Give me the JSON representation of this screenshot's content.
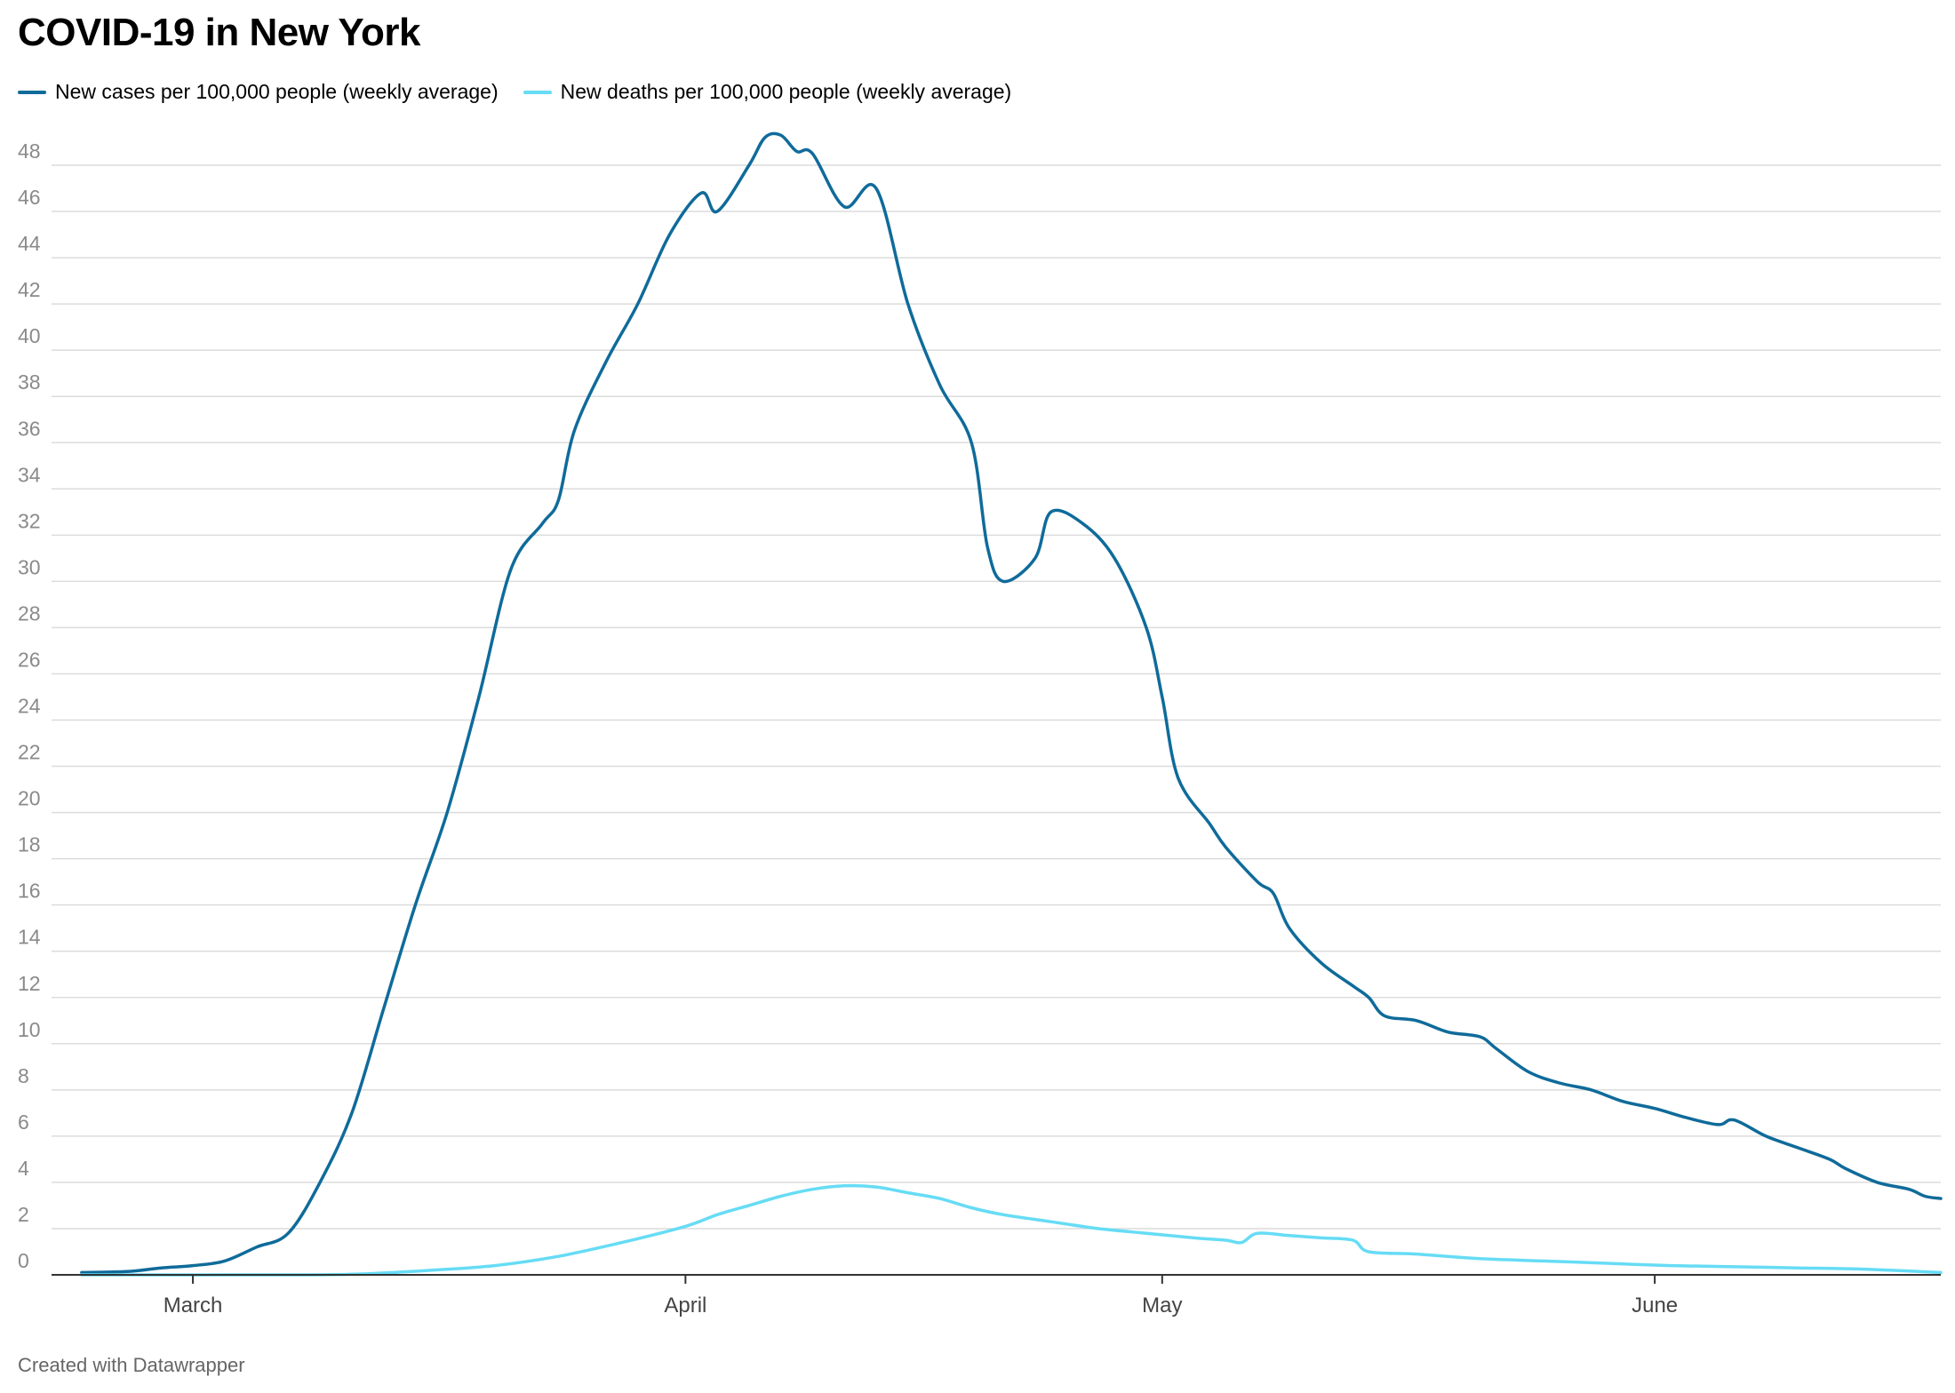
{
  "chart_data": {
    "type": "line",
    "title": "COVID-19 in New York",
    "xlabel": "",
    "ylabel": "",
    "ylim": [
      0,
      48
    ],
    "yticks": [
      0,
      2,
      4,
      6,
      8,
      10,
      12,
      14,
      16,
      18,
      20,
      22,
      24,
      26,
      28,
      30,
      32,
      34,
      36,
      38,
      40,
      42,
      44,
      46,
      48
    ],
    "xlim": [
      "2020-02-22",
      "2020-06-19"
    ],
    "xticks": [
      {
        "date": "2020-03-01",
        "label": "March"
      },
      {
        "date": "2020-04-01",
        "label": "April"
      },
      {
        "date": "2020-05-01",
        "label": "May"
      },
      {
        "date": "2020-06-01",
        "label": "June"
      }
    ],
    "grid": "horizontal",
    "legend": "top-left",
    "series": [
      {
        "name": "New cases per 100,000 people (weekly average)",
        "color": "#0f6b9a",
        "points": [
          [
            "2020-02-23",
            0.1
          ],
          [
            "2020-02-26",
            0.15
          ],
          [
            "2020-02-28",
            0.3
          ],
          [
            "2020-03-01",
            0.4
          ],
          [
            "2020-03-03",
            0.6
          ],
          [
            "2020-03-05",
            1.2
          ],
          [
            "2020-03-07",
            1.8
          ],
          [
            "2020-03-09",
            4.0
          ],
          [
            "2020-03-11",
            7.0
          ],
          [
            "2020-03-13",
            11.5
          ],
          [
            "2020-03-15",
            16.0
          ],
          [
            "2020-03-17",
            20.0
          ],
          [
            "2020-03-19",
            25.0
          ],
          [
            "2020-03-21",
            30.5
          ],
          [
            "2020-03-23",
            32.5
          ],
          [
            "2020-03-24",
            33.5
          ],
          [
            "2020-03-25",
            36.5
          ],
          [
            "2020-03-27",
            39.5
          ],
          [
            "2020-03-29",
            42.0
          ],
          [
            "2020-03-31",
            45.0
          ],
          [
            "2020-04-02",
            46.8
          ],
          [
            "2020-04-03",
            46.0
          ],
          [
            "2020-04-05",
            48.0
          ],
          [
            "2020-04-06",
            49.2
          ],
          [
            "2020-04-07",
            49.3
          ],
          [
            "2020-04-08",
            48.6
          ],
          [
            "2020-04-09",
            48.5
          ],
          [
            "2020-04-11",
            46.2
          ],
          [
            "2020-04-13",
            47.0
          ],
          [
            "2020-04-15",
            42.0
          ],
          [
            "2020-04-17",
            38.5
          ],
          [
            "2020-04-19",
            36.0
          ],
          [
            "2020-04-20",
            31.5
          ],
          [
            "2020-04-21",
            30.0
          ],
          [
            "2020-04-23",
            31.0
          ],
          [
            "2020-04-24",
            33.0
          ],
          [
            "2020-04-26",
            32.5
          ],
          [
            "2020-04-28",
            31.0
          ],
          [
            "2020-04-30",
            28.0
          ],
          [
            "2020-05-01",
            25.0
          ],
          [
            "2020-05-02",
            21.5
          ],
          [
            "2020-05-04",
            19.5
          ],
          [
            "2020-05-05",
            18.5
          ],
          [
            "2020-05-07",
            17.0
          ],
          [
            "2020-05-08",
            16.5
          ],
          [
            "2020-05-09",
            15.0
          ],
          [
            "2020-05-11",
            13.5
          ],
          [
            "2020-05-13",
            12.5
          ],
          [
            "2020-05-14",
            12.0
          ],
          [
            "2020-05-15",
            11.2
          ],
          [
            "2020-05-17",
            11.0
          ],
          [
            "2020-05-19",
            10.5
          ],
          [
            "2020-05-21",
            10.3
          ],
          [
            "2020-05-22",
            9.8
          ],
          [
            "2020-05-24",
            8.8
          ],
          [
            "2020-05-26",
            8.3
          ],
          [
            "2020-05-28",
            8.0
          ],
          [
            "2020-05-30",
            7.5
          ],
          [
            "2020-06-01",
            7.2
          ],
          [
            "2020-06-03",
            6.8
          ],
          [
            "2020-06-05",
            6.5
          ],
          [
            "2020-06-06",
            6.7
          ],
          [
            "2020-06-08",
            6.0
          ],
          [
            "2020-06-10",
            5.5
          ],
          [
            "2020-06-12",
            5.0
          ],
          [
            "2020-06-13",
            4.6
          ],
          [
            "2020-06-15",
            4.0
          ],
          [
            "2020-06-17",
            3.7
          ],
          [
            "2020-06-18",
            3.4
          ],
          [
            "2020-06-19",
            3.3
          ]
        ]
      },
      {
        "name": "New deaths per 100,000 people (weekly average)",
        "color": "#66dcf5",
        "points": [
          [
            "2020-02-23",
            0.0
          ],
          [
            "2020-03-08",
            0.0
          ],
          [
            "2020-03-12",
            0.05
          ],
          [
            "2020-03-16",
            0.2
          ],
          [
            "2020-03-20",
            0.4
          ],
          [
            "2020-03-24",
            0.8
          ],
          [
            "2020-03-28",
            1.4
          ],
          [
            "2020-04-01",
            2.1
          ],
          [
            "2020-04-03",
            2.6
          ],
          [
            "2020-04-05",
            3.0
          ],
          [
            "2020-04-07",
            3.4
          ],
          [
            "2020-04-09",
            3.7
          ],
          [
            "2020-04-11",
            3.85
          ],
          [
            "2020-04-13",
            3.8
          ],
          [
            "2020-04-15",
            3.55
          ],
          [
            "2020-04-17",
            3.3
          ],
          [
            "2020-04-19",
            2.9
          ],
          [
            "2020-04-21",
            2.6
          ],
          [
            "2020-04-24",
            2.3
          ],
          [
            "2020-04-27",
            2.0
          ],
          [
            "2020-04-30",
            1.8
          ],
          [
            "2020-05-03",
            1.6
          ],
          [
            "2020-05-05",
            1.5
          ],
          [
            "2020-05-06",
            1.4
          ],
          [
            "2020-05-07",
            1.8
          ],
          [
            "2020-05-09",
            1.7
          ],
          [
            "2020-05-11",
            1.6
          ],
          [
            "2020-05-13",
            1.5
          ],
          [
            "2020-05-14",
            1.0
          ],
          [
            "2020-05-17",
            0.9
          ],
          [
            "2020-05-21",
            0.7
          ],
          [
            "2020-05-25",
            0.6
          ],
          [
            "2020-05-29",
            0.5
          ],
          [
            "2020-06-02",
            0.4
          ],
          [
            "2020-06-06",
            0.35
          ],
          [
            "2020-06-10",
            0.3
          ],
          [
            "2020-06-14",
            0.25
          ],
          [
            "2020-06-19",
            0.1
          ]
        ]
      }
    ]
  },
  "footer": {
    "credit": "Created with Datawrapper"
  }
}
